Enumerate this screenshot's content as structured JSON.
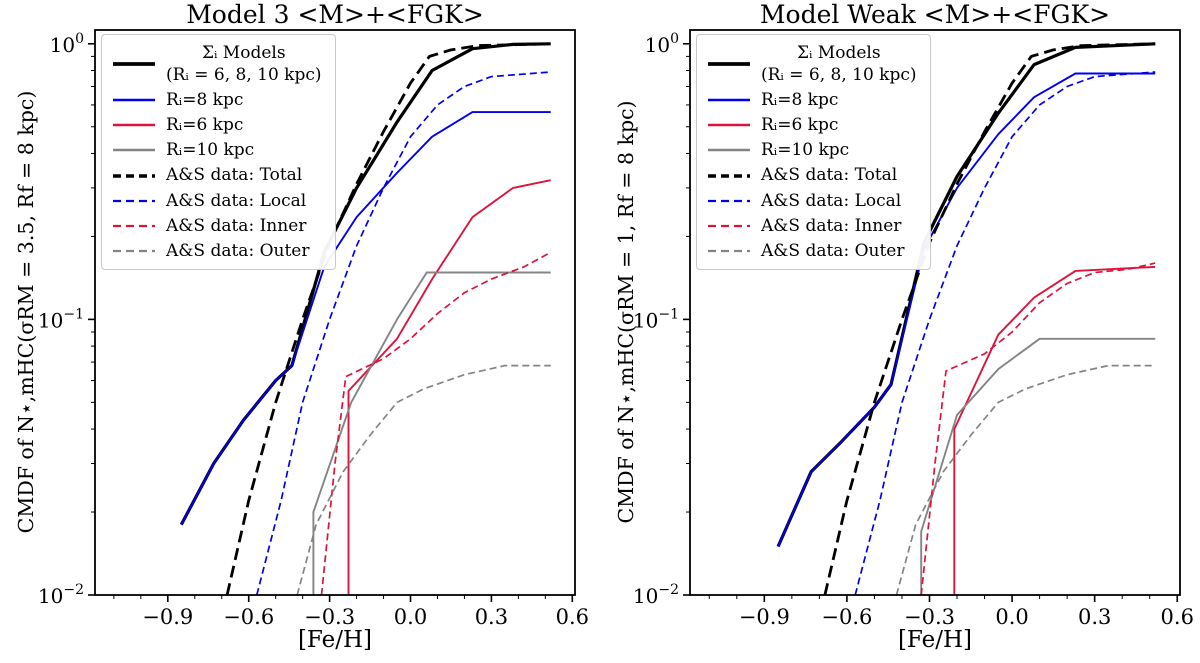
{
  "figure": {
    "background": "#ffffff",
    "frame_color": "#000000"
  },
  "colors": {
    "black": "#000000",
    "blue": "#0000ee",
    "red": "#dc143c",
    "gray": "#848484"
  },
  "chart_data": [
    {
      "type": "line",
      "title": "Model 3 <M>+<FGK>",
      "xlabel": "[Fe/H]",
      "ylabel": "CMDF of N⋆,mHC(σRM = 3.5, Rf = 8 kpc)",
      "xlim": [
        -1.17,
        0.61
      ],
      "ylim": [
        0.01,
        1.0
      ],
      "yscale": "log",
      "grid": false,
      "legend_position": "upper-left",
      "xticks": [
        -0.9,
        -0.6,
        -0.3,
        0.0,
        0.3,
        0.6
      ],
      "yticks_exponents": [
        0,
        -1,
        -2
      ],
      "yticks_labels": [
        "10^0",
        "10^-1",
        "10^-2"
      ],
      "series": [
        {
          "key": "sum-models",
          "name": "Σᵢ Models",
          "sublabel": "(Rᵢ = 6, 8, 10 kpc)",
          "color": "#000000",
          "dash": false,
          "width": 3.2,
          "points": [
            [
              -0.85,
              0.018
            ],
            [
              -0.73,
              0.03
            ],
            [
              -0.62,
              0.043
            ],
            [
              -0.5,
              0.06
            ],
            [
              -0.44,
              0.068
            ],
            [
              -0.32,
              0.175
            ],
            [
              -0.2,
              0.3
            ],
            [
              -0.05,
              0.52
            ],
            [
              0.08,
              0.8
            ],
            [
              0.23,
              0.96
            ],
            [
              0.38,
              0.995
            ],
            [
              0.52,
              1.0
            ]
          ]
        },
        {
          "key": "ri-8",
          "name": "Rᵢ=8 kpc",
          "color": "#0000ee",
          "dash": false,
          "width": 1.9,
          "points": [
            [
              -0.85,
              0.018
            ],
            [
              -0.73,
              0.03
            ],
            [
              -0.62,
              0.043
            ],
            [
              -0.5,
              0.06
            ],
            [
              -0.44,
              0.068
            ],
            [
              -0.32,
              0.155
            ],
            [
              -0.2,
              0.235
            ],
            [
              -0.05,
              0.34
            ],
            [
              0.08,
              0.46
            ],
            [
              0.23,
              0.565
            ],
            [
              0.52,
              0.565
            ]
          ]
        },
        {
          "key": "ri-6",
          "name": "Rᵢ=6 kpc",
          "color": "#dc143c",
          "dash": false,
          "width": 1.9,
          "points": [
            [
              -0.23,
              0.01
            ],
            [
              -0.23,
              0.055
            ],
            [
              -0.05,
              0.085
            ],
            [
              0.08,
              0.14
            ],
            [
              0.23,
              0.235
            ],
            [
              0.38,
              0.3
            ],
            [
              0.52,
              0.32
            ]
          ]
        },
        {
          "key": "ri-10",
          "name": "Rᵢ=10 kpc",
          "color": "#848484",
          "dash": false,
          "width": 1.9,
          "points": [
            [
              -0.36,
              0.01
            ],
            [
              -0.36,
              0.02
            ],
            [
              -0.22,
              0.05
            ],
            [
              -0.05,
              0.1
            ],
            [
              0.06,
              0.148
            ],
            [
              0.52,
              0.148
            ]
          ]
        },
        {
          "key": "as-total",
          "name": "A&S data: Total",
          "color": "#000000",
          "dash": true,
          "width": 2.8,
          "points": [
            [
              -0.68,
              0.01
            ],
            [
              -0.6,
              0.022
            ],
            [
              -0.5,
              0.05
            ],
            [
              -0.4,
              0.1
            ],
            [
              -0.3,
              0.19
            ],
            [
              -0.2,
              0.31
            ],
            [
              -0.1,
              0.48
            ],
            [
              0.0,
              0.72
            ],
            [
              0.07,
              0.9
            ],
            [
              0.15,
              0.95
            ],
            [
              0.25,
              0.985
            ],
            [
              0.52,
              1.0
            ]
          ]
        },
        {
          "key": "as-local",
          "name": "A&S data: Local",
          "color": "#0000ee",
          "dash": true,
          "width": 1.7,
          "points": [
            [
              -0.57,
              0.01
            ],
            [
              -0.48,
              0.022
            ],
            [
              -0.4,
              0.05
            ],
            [
              -0.3,
              0.1
            ],
            [
              -0.2,
              0.185
            ],
            [
              -0.1,
              0.3
            ],
            [
              0.0,
              0.46
            ],
            [
              0.1,
              0.6
            ],
            [
              0.2,
              0.7
            ],
            [
              0.3,
              0.76
            ],
            [
              0.52,
              0.79
            ]
          ]
        },
        {
          "key": "as-inner",
          "name": "A&S data: Inner",
          "color": "#dc143c",
          "dash": true,
          "width": 1.7,
          "points": [
            [
              -0.33,
              0.01
            ],
            [
              -0.28,
              0.03
            ],
            [
              -0.24,
              0.062
            ],
            [
              -0.1,
              0.072
            ],
            [
              0.0,
              0.085
            ],
            [
              0.1,
              0.105
            ],
            [
              0.2,
              0.125
            ],
            [
              0.3,
              0.14
            ],
            [
              0.42,
              0.155
            ],
            [
              0.52,
              0.175
            ]
          ]
        },
        {
          "key": "as-outer",
          "name": "A&S data: Outer",
          "color": "#848484",
          "dash": true,
          "width": 1.7,
          "points": [
            [
              -0.42,
              0.01
            ],
            [
              -0.35,
              0.018
            ],
            [
              -0.25,
              0.028
            ],
            [
              -0.15,
              0.038
            ],
            [
              -0.05,
              0.05
            ],
            [
              0.05,
              0.056
            ],
            [
              0.2,
              0.063
            ],
            [
              0.35,
              0.068
            ],
            [
              0.52,
              0.068
            ]
          ]
        }
      ]
    },
    {
      "type": "line",
      "title": "Model Weak <M>+<FGK>",
      "xlabel": "[Fe/H]",
      "ylabel": "CMDF of N⋆,mHC(σRM = 1, Rf = 8 kpc)",
      "xlim": [
        -1.17,
        0.61
      ],
      "ylim": [
        0.01,
        1.0
      ],
      "yscale": "log",
      "grid": false,
      "legend_position": "upper-left",
      "xticks": [
        -0.9,
        -0.6,
        -0.3,
        0.0,
        0.3,
        0.6
      ],
      "yticks_exponents": [
        0,
        -1,
        -2
      ],
      "yticks_labels": [
        "10^0",
        "10^-1",
        "10^-2"
      ],
      "series": [
        {
          "key": "sum-models",
          "name": "Σᵢ Models",
          "sublabel": "(Rᵢ = 6, 8, 10 kpc)",
          "color": "#000000",
          "dash": false,
          "width": 3.2,
          "points": [
            [
              -0.85,
              0.015
            ],
            [
              -0.73,
              0.028
            ],
            [
              -0.62,
              0.036
            ],
            [
              -0.5,
              0.048
            ],
            [
              -0.44,
              0.058
            ],
            [
              -0.32,
              0.19
            ],
            [
              -0.2,
              0.33
            ],
            [
              -0.05,
              0.56
            ],
            [
              0.08,
              0.84
            ],
            [
              0.23,
              0.97
            ],
            [
              0.52,
              1.0
            ]
          ]
        },
        {
          "key": "ri-8",
          "name": "Rᵢ=8 kpc",
          "color": "#0000ee",
          "dash": false,
          "width": 1.9,
          "points": [
            [
              -0.85,
              0.015
            ],
            [
              -0.73,
              0.028
            ],
            [
              -0.62,
              0.036
            ],
            [
              -0.5,
              0.048
            ],
            [
              -0.44,
              0.058
            ],
            [
              -0.32,
              0.18
            ],
            [
              -0.2,
              0.3
            ],
            [
              -0.05,
              0.47
            ],
            [
              0.08,
              0.64
            ],
            [
              0.23,
              0.78
            ],
            [
              0.52,
              0.78
            ]
          ]
        },
        {
          "key": "ri-6",
          "name": "Rᵢ=6 kpc",
          "color": "#dc143c",
          "dash": false,
          "width": 1.9,
          "points": [
            [
              -0.21,
              0.01
            ],
            [
              -0.21,
              0.04
            ],
            [
              -0.05,
              0.088
            ],
            [
              0.08,
              0.12
            ],
            [
              0.23,
              0.15
            ],
            [
              0.52,
              0.155
            ]
          ]
        },
        {
          "key": "ri-10",
          "name": "Rᵢ=10 kpc",
          "color": "#848484",
          "dash": false,
          "width": 1.9,
          "points": [
            [
              -0.33,
              0.01
            ],
            [
              -0.33,
              0.017
            ],
            [
              -0.2,
              0.045
            ],
            [
              -0.05,
              0.066
            ],
            [
              0.1,
              0.085
            ],
            [
              0.52,
              0.085
            ]
          ]
        },
        {
          "key": "as-total",
          "name": "A&S data: Total",
          "color": "#000000",
          "dash": true,
          "width": 2.8,
          "points": [
            [
              -0.68,
              0.01
            ],
            [
              -0.6,
              0.022
            ],
            [
              -0.5,
              0.05
            ],
            [
              -0.4,
              0.1
            ],
            [
              -0.3,
              0.19
            ],
            [
              -0.2,
              0.31
            ],
            [
              -0.1,
              0.48
            ],
            [
              0.0,
              0.72
            ],
            [
              0.07,
              0.9
            ],
            [
              0.15,
              0.95
            ],
            [
              0.25,
              0.985
            ],
            [
              0.52,
              1.0
            ]
          ]
        },
        {
          "key": "as-local",
          "name": "A&S data: Local",
          "color": "#0000ee",
          "dash": true,
          "width": 1.7,
          "points": [
            [
              -0.57,
              0.01
            ],
            [
              -0.48,
              0.022
            ],
            [
              -0.4,
              0.05
            ],
            [
              -0.3,
              0.1
            ],
            [
              -0.2,
              0.185
            ],
            [
              -0.1,
              0.3
            ],
            [
              0.0,
              0.46
            ],
            [
              0.1,
              0.6
            ],
            [
              0.2,
              0.7
            ],
            [
              0.3,
              0.76
            ],
            [
              0.52,
              0.79
            ]
          ]
        },
        {
          "key": "as-inner",
          "name": "A&S data: Inner",
          "color": "#dc143c",
          "dash": true,
          "width": 1.7,
          "points": [
            [
              -0.33,
              0.01
            ],
            [
              -0.28,
              0.03
            ],
            [
              -0.24,
              0.065
            ],
            [
              -0.1,
              0.075
            ],
            [
              0.0,
              0.09
            ],
            [
              0.1,
              0.115
            ],
            [
              0.2,
              0.135
            ],
            [
              0.3,
              0.148
            ],
            [
              0.42,
              0.152
            ],
            [
              0.52,
              0.16
            ]
          ]
        },
        {
          "key": "as-outer",
          "name": "A&S data: Outer",
          "color": "#848484",
          "dash": true,
          "width": 1.7,
          "points": [
            [
              -0.42,
              0.01
            ],
            [
              -0.35,
              0.018
            ],
            [
              -0.25,
              0.028
            ],
            [
              -0.15,
              0.038
            ],
            [
              -0.05,
              0.05
            ],
            [
              0.05,
              0.056
            ],
            [
              0.2,
              0.063
            ],
            [
              0.35,
              0.068
            ],
            [
              0.52,
              0.068
            ]
          ]
        }
      ]
    }
  ]
}
